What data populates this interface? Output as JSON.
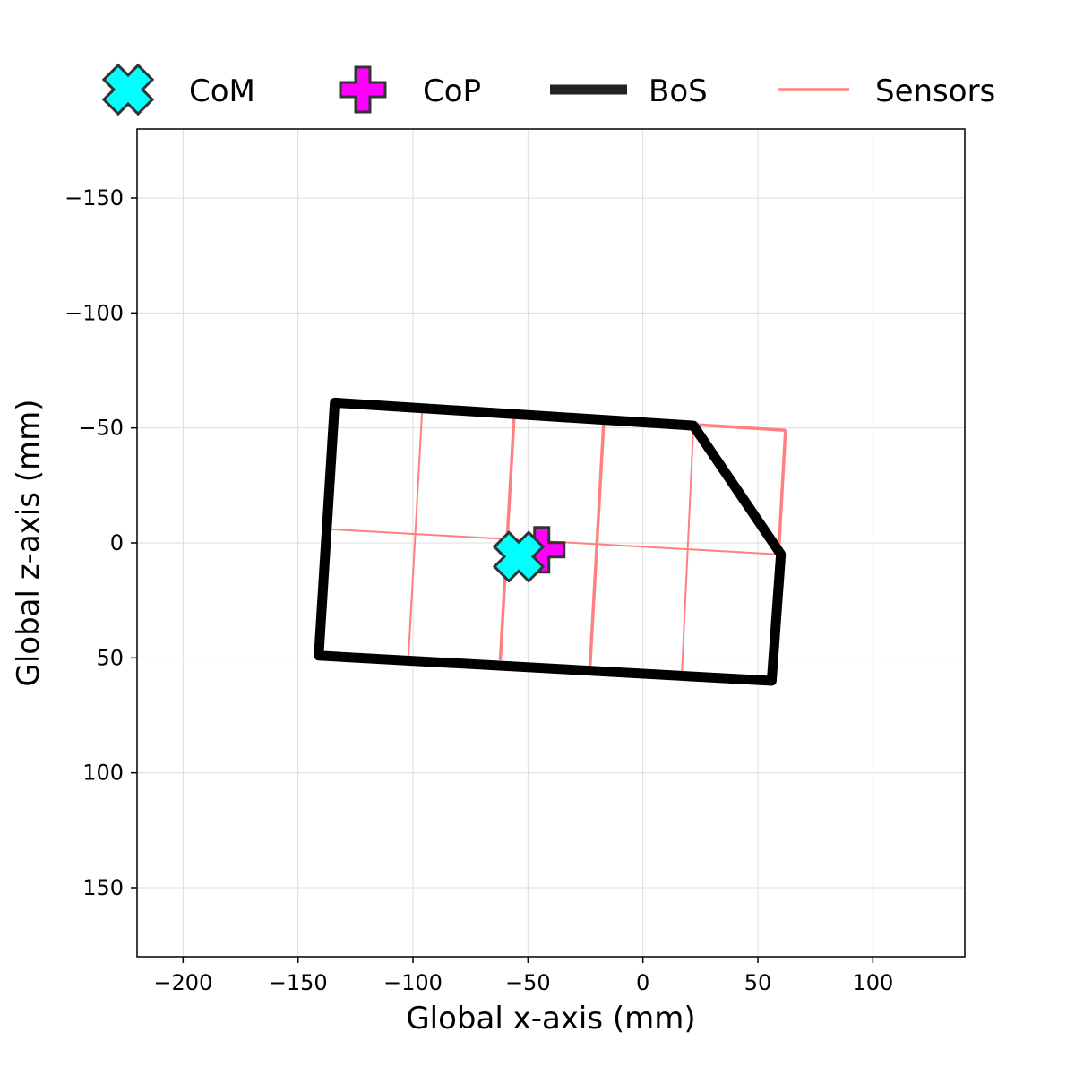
{
  "chart_data": {
    "type": "scatter",
    "title": "",
    "xlabel": "Global x-axis (mm)",
    "ylabel": "Global z-axis (mm)",
    "xlim": [
      -220,
      140
    ],
    "ylim": [
      180,
      -180
    ],
    "y_inverted": true,
    "grid": true,
    "legend_position": "top",
    "x_ticks": [
      -200,
      -150,
      -100,
      -50,
      0,
      50,
      100
    ],
    "x_tick_labels": [
      "−200",
      "−150",
      "−100",
      "−50",
      "0",
      "50",
      "100"
    ],
    "y_ticks": [
      -150,
      -100,
      -50,
      0,
      50,
      100,
      150
    ],
    "y_tick_labels": [
      "−150",
      "−100",
      "−50",
      "0",
      "50",
      "100",
      "150"
    ],
    "legend": [
      {
        "key": "com",
        "label": "CoM"
      },
      {
        "key": "cop",
        "label": "CoP"
      },
      {
        "key": "bos",
        "label": "BoS"
      },
      {
        "key": "sensors",
        "label": "Sensors"
      }
    ],
    "com": {
      "x": -54,
      "z": 6,
      "color": "#00FFFF",
      "marker": "X"
    },
    "cop": {
      "x": -44,
      "z": 3,
      "color": "#FF00FF",
      "marker": "P"
    },
    "bos": {
      "color": "#000000",
      "points": [
        [
          -134,
          -61
        ],
        [
          22,
          -51
        ],
        [
          60,
          5
        ],
        [
          56,
          60
        ],
        [
          -141,
          49
        ],
        [
          -134,
          -61
        ]
      ]
    },
    "sensors": {
      "color": "#FF8080",
      "outline": [
        [
          -134,
          -61
        ],
        [
          62,
          -49
        ],
        [
          56,
          60
        ],
        [
          -141,
          49
        ]
      ],
      "grid_lines": [
        [
          [
            -96,
            -58
          ],
          [
            -102,
            50
          ]
        ],
        [
          [
            -56,
            -55
          ],
          [
            -62,
            51
          ]
        ],
        [
          [
            -17,
            -53
          ],
          [
            -23,
            54
          ]
        ],
        [
          [
            22,
            -51
          ],
          [
            17,
            56
          ]
        ],
        [
          [
            -137,
            -6
          ],
          [
            59,
            5
          ]
        ]
      ],
      "thick_lines": [
        [
          [
            -56,
            -55
          ],
          [
            -62,
            51
          ]
        ],
        [
          [
            -17,
            -53
          ],
          [
            -23,
            54
          ]
        ],
        [
          [
            -134,
            -61
          ],
          [
            62,
            -49
          ]
        ],
        [
          [
            62,
            -49
          ],
          [
            59,
            5
          ]
        ]
      ]
    }
  }
}
